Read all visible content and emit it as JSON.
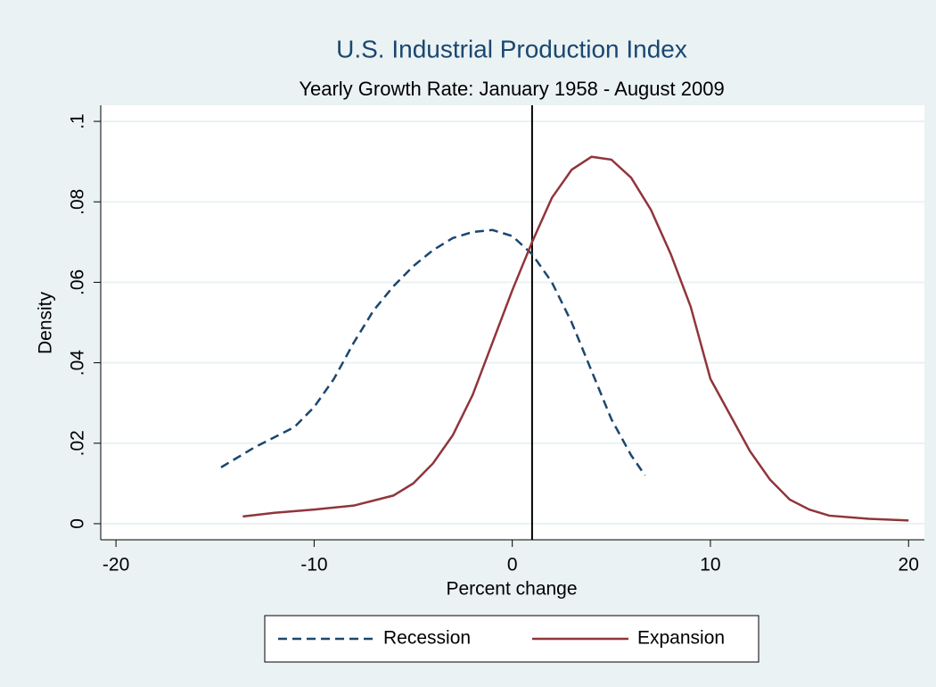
{
  "chart_data": {
    "type": "line",
    "title": "U.S. Industrial Production Index",
    "subtitle": "Yearly Growth Rate: January 1958 - August 2009",
    "x_label": "Percent change",
    "y_label": "Density",
    "xlim": [
      -20.77,
      20.8
    ],
    "ylim": [
      -0.004,
      0.104
    ],
    "xticks": [
      -20,
      -10,
      0,
      10,
      20
    ],
    "yticks": [
      0,
      {
        "value": 0.02,
        "label": ".02"
      },
      {
        "value": 0.04,
        "label": ".04"
      },
      {
        "value": 0.06,
        "label": ".06"
      },
      {
        "value": 0.08,
        "label": ".08"
      },
      {
        "value": 0.1,
        "label": ".1"
      }
    ],
    "grid": true,
    "xline": 1,
    "legend": "bottom",
    "series": [
      {
        "name": "Recession",
        "color": "#1a476f",
        "dashed": true,
        "x": [
          -14.7,
          -13,
          -11,
          -10,
          -9,
          -8,
          -7,
          -6,
          -5,
          -4,
          -3,
          -2,
          -1,
          0,
          1,
          2,
          3,
          4,
          5,
          6,
          6.7
        ],
        "values": [
          0.014,
          0.019,
          0.024,
          0.029,
          0.036,
          0.045,
          0.053,
          0.059,
          0.064,
          0.068,
          0.071,
          0.0725,
          0.073,
          0.0715,
          0.067,
          0.06,
          0.05,
          0.038,
          0.026,
          0.017,
          0.012
        ]
      },
      {
        "name": "Expansion",
        "color": "#90353b",
        "dashed": false,
        "x": [
          -13.6,
          -12,
          -10,
          -8,
          -6,
          -5,
          -4,
          -3,
          -2,
          -1,
          0,
          1,
          2,
          3,
          4,
          5,
          6,
          7,
          8,
          9,
          10,
          11,
          12,
          13,
          14,
          15,
          16,
          18,
          20
        ],
        "values": [
          0.0018,
          0.0027,
          0.0035,
          0.0045,
          0.007,
          0.01,
          0.015,
          0.022,
          0.032,
          0.045,
          0.058,
          0.07,
          0.081,
          0.088,
          0.0912,
          0.0905,
          0.086,
          0.078,
          0.067,
          0.054,
          0.036,
          0.027,
          0.018,
          0.011,
          0.006,
          0.0035,
          0.002,
          0.0012,
          0.0008
        ]
      }
    ]
  }
}
